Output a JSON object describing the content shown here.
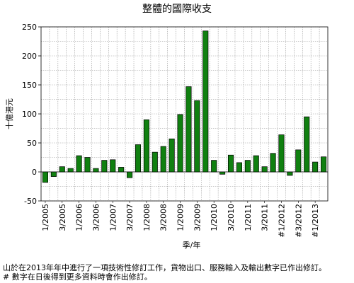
{
  "chart_data": {
    "type": "bar",
    "title": "整體的國際收支",
    "ylabel": "十億港元",
    "xlabel": "季/年",
    "ylim": [
      -50,
      250
    ],
    "yticks": [
      -50,
      0,
      50,
      100,
      150,
      200,
      250
    ],
    "grid": true,
    "legend": "none",
    "bar_color": "#108010",
    "categories": [
      "1/2005",
      "2/2005",
      "3/2005",
      "4/2005",
      "1/2006",
      "2/2006",
      "3/2006",
      "4/2006",
      "1/2007",
      "2/2007",
      "3/2007",
      "4/2007",
      "1/2008",
      "2/2008",
      "3/2008",
      "4/2008",
      "1/2009",
      "2/2009",
      "3/2009",
      "4/2009",
      "1/2010",
      "2/2010",
      "3/2010",
      "4/2010",
      "1/2011",
      "2/2011",
      "3/2011",
      "4/2011",
      "#1/2012",
      "#2/2012",
      "#3/2012",
      "#4/2012",
      "#1/2013",
      "#2/2013"
    ],
    "tick_labels": [
      "1/2005",
      "3/2005",
      "1/2006",
      "3/2006",
      "1/2007",
      "3/2007",
      "1/2008",
      "3/2008",
      "1/2009",
      "3/2009",
      "1/2010",
      "3/2010",
      "1/2011",
      "3/2011",
      "#1/2012",
      "#3/2012",
      "#1/2013"
    ],
    "values": [
      -18,
      -8,
      9,
      6,
      28,
      25,
      6,
      20,
      21,
      8,
      -10,
      47,
      90,
      34,
      44,
      57,
      99,
      147,
      123,
      243,
      20,
      -4,
      29,
      16,
      20,
      28,
      9,
      32,
      64,
      -6,
      38,
      95,
      17,
      26
    ]
  },
  "footnotes": [
    "山於在2013年年中進行了一項技術性修訂工作，貨物出口、服務輸入及輸出數字已作出修訂。",
    "#         數字在日後得到更多資料時會作出修訂。"
  ]
}
